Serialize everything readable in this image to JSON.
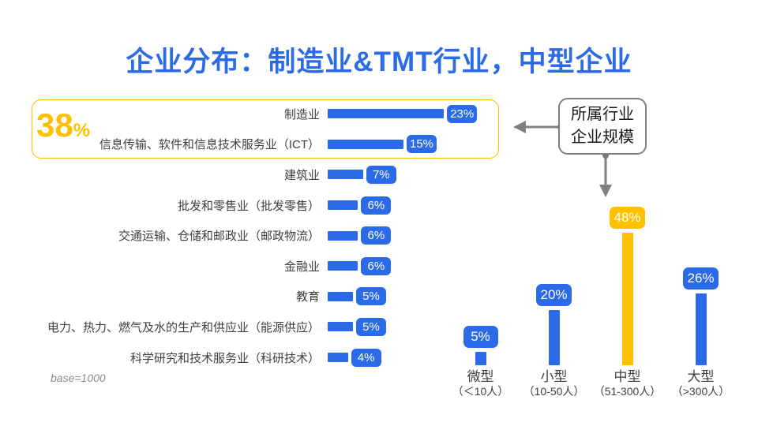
{
  "title": "企业分布：制造业&TMT行业，中型企业",
  "colors": {
    "blue": "#2b6be8",
    "gold": "#FFC000",
    "gray": "#808080"
  },
  "industry_chart": {
    "highlight_value": "38",
    "highlight_unit": "%",
    "base_note": "base=1000",
    "rows": [
      {
        "label": "制造业",
        "value": 23,
        "display": "23%"
      },
      {
        "label": "信息传输、软件和信息技术服务业（ICT）",
        "value": 15,
        "display": "15%"
      },
      {
        "label": "建筑业",
        "value": 7,
        "display": "7%"
      },
      {
        "label": "批发和零售业（批发零售）",
        "value": 6,
        "display": "6%"
      },
      {
        "label": "交通运输、仓储和邮政业（邮政物流）",
        "value": 6,
        "display": "6%"
      },
      {
        "label": "金融业",
        "value": 6,
        "display": "6%"
      },
      {
        "label": "教育",
        "value": 5,
        "display": "5%"
      },
      {
        "label": "电力、热力、燃气及水的生产和供应业（能源供应）",
        "value": 5,
        "display": "5%"
      },
      {
        "label": "科学研究和技术服务业（科研技术）",
        "value": 4,
        "display": "4%"
      }
    ]
  },
  "size_chart": {
    "bars": [
      {
        "name": "微型",
        "range": "（＜10人）",
        "value": 5,
        "display": "5%",
        "color": "#2b6be8"
      },
      {
        "name": "小型",
        "range": "（10-50人）",
        "value": 20,
        "display": "20%",
        "color": "#2b6be8"
      },
      {
        "name": "中型",
        "range": "（51-300人）",
        "value": 48,
        "display": "48%",
        "color": "#FFC000"
      },
      {
        "name": "大型",
        "range": "（>300人）",
        "value": 26,
        "display": "26%",
        "color": "#2b6be8"
      }
    ]
  },
  "callout": {
    "line1": "所属行业",
    "line2": "企业规模"
  },
  "chart_data": [
    {
      "type": "bar",
      "orientation": "horizontal",
      "title": "所属行业",
      "categories": [
        "制造业",
        "信息传输、软件和信息技术服务业（ICT）",
        "建筑业",
        "批发和零售业（批发零售）",
        "交通运输、仓储和邮政业（邮政物流）",
        "金融业",
        "教育",
        "电力、热力、燃气及水的生产和供应业（能源供应）",
        "科学研究和技术服务业（科研技术）"
      ],
      "values": [
        23,
        15,
        7,
        6,
        6,
        6,
        5,
        5,
        4
      ],
      "unit": "%",
      "annotation": "38% — 制造业与ICT合计（金色框高亮）",
      "base": "base=1000",
      "bar_color": "#2b6be8",
      "legend": "off",
      "grid": "off"
    },
    {
      "type": "bar",
      "orientation": "vertical",
      "title": "企业规模",
      "categories": [
        "微型（＜10人）",
        "小型（10-50人）",
        "中型（51-300人）",
        "大型（>300人）"
      ],
      "values": [
        5,
        20,
        48,
        26
      ],
      "unit": "%",
      "highlight_index": 2,
      "highlight_color": "#FFC000",
      "bar_color": "#2b6be8",
      "legend": "off",
      "grid": "off"
    }
  ]
}
